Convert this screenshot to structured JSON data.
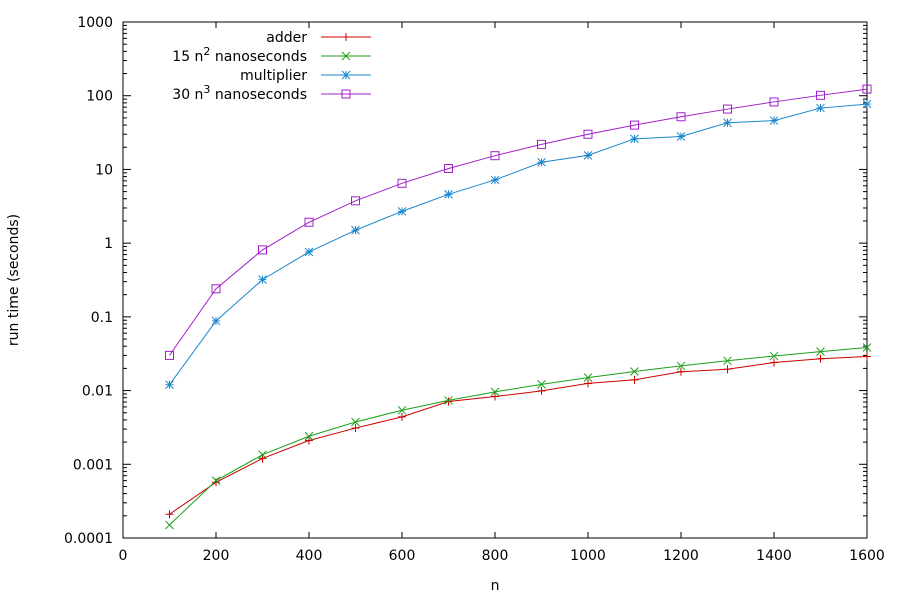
{
  "chart_data": {
    "type": "line",
    "title": "",
    "xlabel": "n",
    "ylabel": "run time (seconds)",
    "xlim": [
      0,
      1600
    ],
    "ylim": [
      0.0001,
      1000
    ],
    "yscale": "log",
    "grid": false,
    "legend_position": "top-left",
    "x_ticks": [
      0,
      200,
      400,
      600,
      800,
      1000,
      1200,
      1400,
      1600
    ],
    "x_tick_labels": [
      "0",
      "200",
      "400",
      "600",
      "800",
      "1000",
      "1200",
      "1400",
      "1600"
    ],
    "y_ticks": [
      0.0001,
      0.001,
      0.01,
      0.1,
      1,
      10,
      100,
      1000
    ],
    "y_tick_labels": [
      "0.0001",
      "0.001",
      "0.01",
      "0.1",
      "1",
      "10",
      "100",
      "1000"
    ],
    "x": [
      100,
      200,
      300,
      400,
      500,
      600,
      700,
      800,
      900,
      1000,
      1100,
      1200,
      1300,
      1400,
      1500,
      1600
    ],
    "series": [
      {
        "name": "adder",
        "legend_prefix": "adder",
        "legend_sup": "",
        "legend_suffix": "",
        "color": "#cc0000",
        "marker": "plus",
        "values": [
          0.00021,
          0.00057,
          0.0012,
          0.0021,
          0.0031,
          0.0044,
          0.0071,
          0.0083,
          0.0099,
          0.0125,
          0.014,
          0.018,
          0.0195,
          0.024,
          0.027,
          0.029
        ]
      },
      {
        "name": "15 n2 nanoseconds",
        "legend_prefix": "15 n",
        "legend_sup": "2",
        "legend_suffix": " nanoseconds",
        "color": "#1aa01a",
        "marker": "cross",
        "values": [
          0.00015,
          0.0006,
          0.00135,
          0.0024,
          0.00375,
          0.0054,
          0.00735,
          0.0096,
          0.01215,
          0.015,
          0.01815,
          0.0216,
          0.02535,
          0.0294,
          0.03375,
          0.0384
        ]
      },
      {
        "name": "multiplier",
        "legend_prefix": "multiplier",
        "legend_sup": "",
        "legend_suffix": "",
        "color": "#1a86cc",
        "marker": "star",
        "values": [
          0.012,
          0.088,
          0.32,
          0.76,
          1.5,
          2.7,
          4.6,
          7.2,
          12.5,
          15.5,
          26,
          28,
          43,
          46,
          68,
          77
        ]
      },
      {
        "name": "30 n3 nanoseconds",
        "legend_prefix": "30 n",
        "legend_sup": "3",
        "legend_suffix": " nanoseconds",
        "color": "#a020c8",
        "marker": "square",
        "values": [
          0.03,
          0.24,
          0.81,
          1.92,
          3.75,
          6.48,
          10.29,
          15.36,
          21.87,
          30,
          39.93,
          51.84,
          65.91,
          82.32,
          101.25,
          122.88
        ]
      }
    ]
  }
}
